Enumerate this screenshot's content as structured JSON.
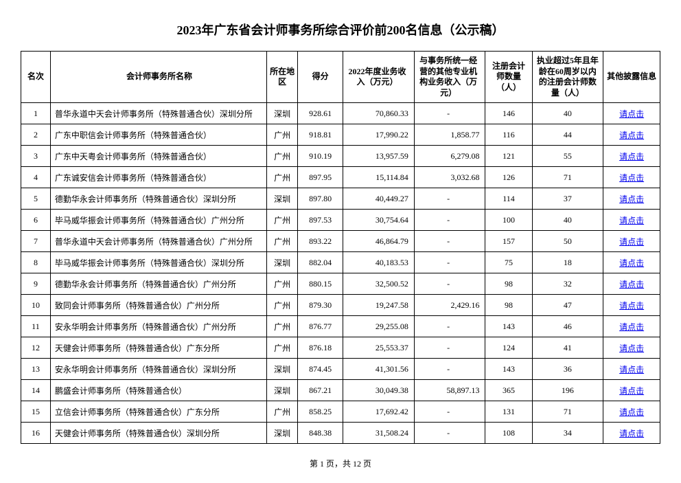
{
  "title": "2023年广东省会计师事务所综合评价前200名信息（公示稿）",
  "columns": {
    "rank": "名次",
    "name": "会计师事务所名称",
    "region": "所在地区",
    "score": "得分",
    "revenue": "2022年度业务收入（万元）",
    "other_rev": "与事务所统一经营的其他专业机构业务收入（万元）",
    "cpa": "注册会计师数量（人）",
    "cpa5": "执业超过5年且年龄在60周岁以内的注册会计师数量（人）",
    "disclosure": "其他披露信息"
  },
  "link_text": "请点击",
  "rows": [
    {
      "rank": "1",
      "name": "普华永道中天会计师事务所（特殊普通合伙）深圳分所",
      "region": "深圳",
      "score": "928.61",
      "rev": "70,860.33",
      "other": "-",
      "cpa": "146",
      "cpa5": "40"
    },
    {
      "rank": "2",
      "name": "广东中职信会计师事务所（特殊普通合伙）",
      "region": "广州",
      "score": "918.81",
      "rev": "17,990.22",
      "other": "1,858.77",
      "cpa": "116",
      "cpa5": "44"
    },
    {
      "rank": "3",
      "name": "广东中天粤会计师事务所（特殊普通合伙）",
      "region": "广州",
      "score": "910.19",
      "rev": "13,957.59",
      "other": "6,279.08",
      "cpa": "121",
      "cpa5": "55"
    },
    {
      "rank": "4",
      "name": "广东诚安信会计师事务所（特殊普通合伙）",
      "region": "广州",
      "score": "897.95",
      "rev": "15,114.84",
      "other": "3,032.68",
      "cpa": "126",
      "cpa5": "71"
    },
    {
      "rank": "5",
      "name": "德勤华永会计师事务所（特殊普通合伙）深圳分所",
      "region": "深圳",
      "score": "897.80",
      "rev": "40,449.27",
      "other": "-",
      "cpa": "114",
      "cpa5": "37"
    },
    {
      "rank": "6",
      "name": "毕马威华振会计师事务所（特殊普通合伙）广州分所",
      "region": "广州",
      "score": "897.53",
      "rev": "30,754.64",
      "other": "-",
      "cpa": "100",
      "cpa5": "40"
    },
    {
      "rank": "7",
      "name": "普华永道中天会计师事务所（特殊普通合伙）广州分所",
      "region": "广州",
      "score": "893.22",
      "rev": "46,864.79",
      "other": "-",
      "cpa": "157",
      "cpa5": "50"
    },
    {
      "rank": "8",
      "name": "毕马威华振会计师事务所（特殊普通合伙）深圳分所",
      "region": "深圳",
      "score": "882.04",
      "rev": "40,183.53",
      "other": "-",
      "cpa": "75",
      "cpa5": "18"
    },
    {
      "rank": "9",
      "name": "德勤华永会计师事务所（特殊普通合伙）广州分所",
      "region": "广州",
      "score": "880.15",
      "rev": "32,500.52",
      "other": "-",
      "cpa": "98",
      "cpa5": "32"
    },
    {
      "rank": "10",
      "name": "致同会计师事务所（特殊普通合伙）广州分所",
      "region": "广州",
      "score": "879.30",
      "rev": "19,247.58",
      "other": "2,429.16",
      "cpa": "98",
      "cpa5": "47"
    },
    {
      "rank": "11",
      "name": "安永华明会计师事务所（特殊普通合伙）广州分所",
      "region": "广州",
      "score": "876.77",
      "rev": "29,255.08",
      "other": "-",
      "cpa": "143",
      "cpa5": "46"
    },
    {
      "rank": "12",
      "name": "天健会计师事务所（特殊普通合伙）广东分所",
      "region": "广州",
      "score": "876.18",
      "rev": "25,553.37",
      "other": "-",
      "cpa": "124",
      "cpa5": "41"
    },
    {
      "rank": "13",
      "name": "安永华明会计师事务所（特殊普通合伙）深圳分所",
      "region": "深圳",
      "score": "874.45",
      "rev": "41,301.56",
      "other": "-",
      "cpa": "143",
      "cpa5": "36"
    },
    {
      "rank": "14",
      "name": "鹏盛会计师事务所（特殊普通合伙）",
      "region": "深圳",
      "score": "867.21",
      "rev": "30,049.38",
      "other": "58,897.13",
      "cpa": "365",
      "cpa5": "196"
    },
    {
      "rank": "15",
      "name": "立信会计师事务所（特殊普通合伙）广东分所",
      "region": "广州",
      "score": "858.25",
      "rev": "17,692.42",
      "other": "-",
      "cpa": "131",
      "cpa5": "71"
    },
    {
      "rank": "16",
      "name": "天健会计师事务所（特殊普通合伙）深圳分所",
      "region": "深圳",
      "score": "848.38",
      "rev": "31,508.24",
      "other": "-",
      "cpa": "108",
      "cpa5": "34"
    }
  ],
  "footer": "第 1 页，共 12 页"
}
